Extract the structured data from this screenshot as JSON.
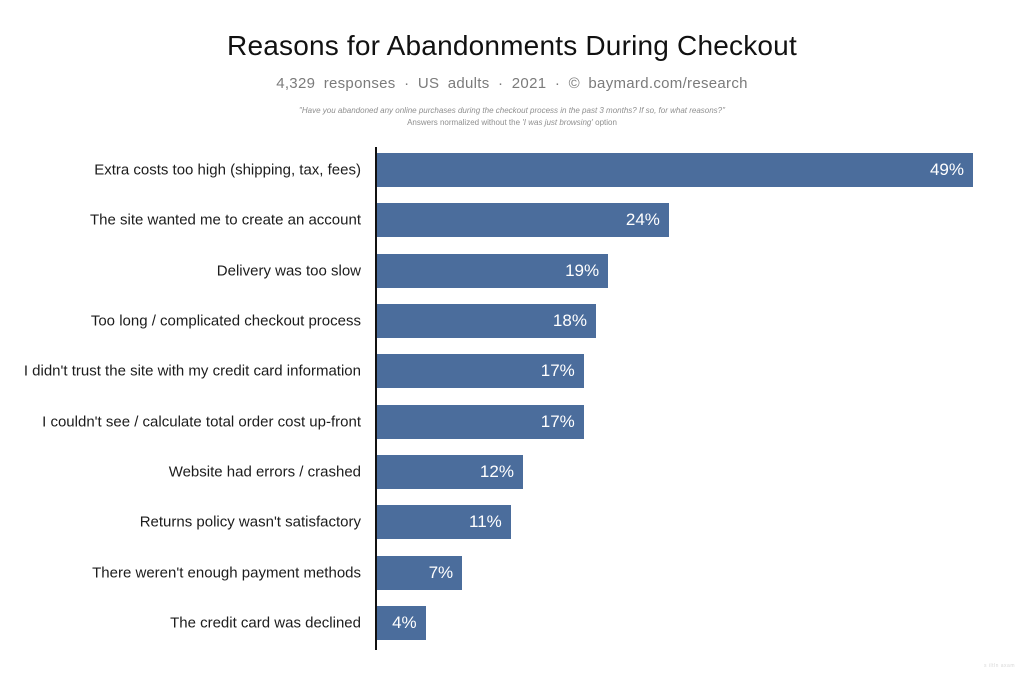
{
  "title": "Reasons for Abandonments During Checkout",
  "subtitle": "4,329 responses · US adults · 2021 · © baymard.com/research",
  "footnote": {
    "quote": "\"Have you abandoned any online purchases during the checkout process in the past 3 months? If so, for what reasons?\"",
    "line2_prefix": "Answers normalized without the ",
    "line2_em": "'I was just browsing'",
    "line2_suffix": " option"
  },
  "watermark": "s iltln axam",
  "colors": {
    "bar": "#4b6d9c",
    "axis": "#111111",
    "value_label": "#ffffff",
    "category_label": "#1c1c1c"
  },
  "chart_data": {
    "type": "bar",
    "orientation": "horizontal",
    "title": "Reasons for Abandonments During Checkout",
    "xlabel": "",
    "ylabel": "",
    "xlim": [
      0,
      49
    ],
    "grid": false,
    "legend": false,
    "value_suffix": "%",
    "categories": [
      "Extra costs too high (shipping, tax, fees)",
      "The site wanted me to create an account",
      "Delivery was too slow",
      "Too long / complicated checkout process",
      "I didn't trust the site with my credit card information",
      "I couldn't see / calculate total order cost up-front",
      "Website had errors / crashed",
      "Returns policy wasn't satisfactory",
      "There weren't enough payment methods",
      "The credit card was declined"
    ],
    "values": [
      49,
      24,
      19,
      18,
      17,
      17,
      12,
      11,
      7,
      4
    ]
  }
}
